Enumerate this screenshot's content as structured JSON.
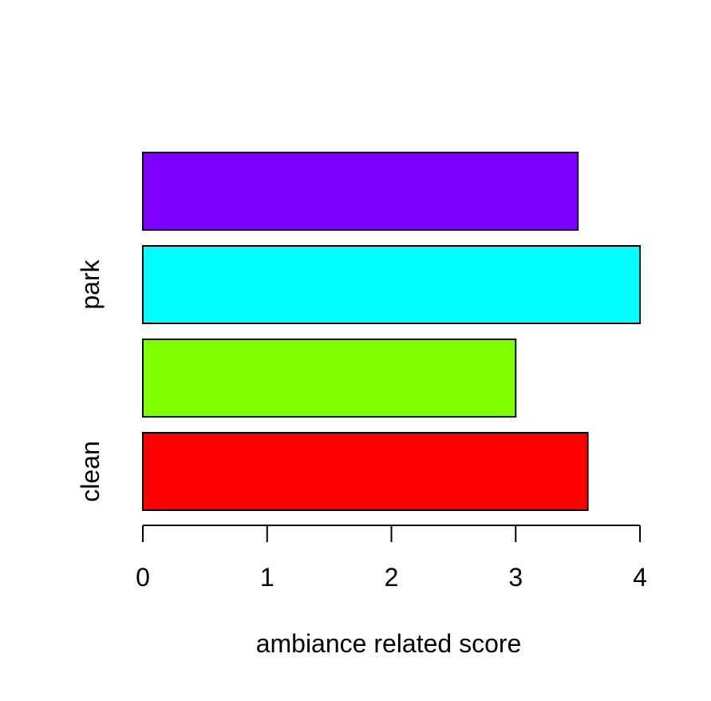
{
  "chart_data": {
    "type": "bar",
    "orientation": "horizontal",
    "categories": [
      "clean",
      "",
      "park",
      ""
    ],
    "values": [
      3.58,
      3.0,
      4.0,
      3.5
    ],
    "colors": [
      "#FF0000",
      "#80FF00",
      "#00FFFF",
      "#8000FF"
    ],
    "xlabel": "ambiance related score",
    "ylabel": "",
    "xlim": [
      0,
      4
    ],
    "xticks": [
      "0",
      "1",
      "2",
      "3",
      "4"
    ],
    "grid": false,
    "legend": "none"
  }
}
